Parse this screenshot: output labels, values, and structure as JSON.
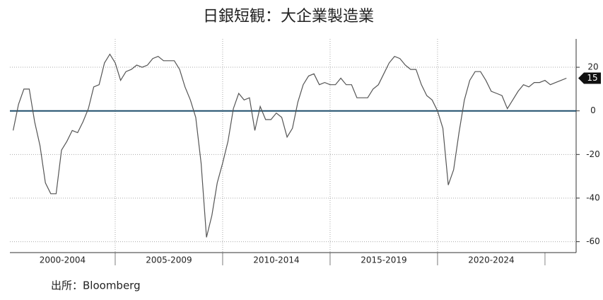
{
  "chart_data": {
    "type": "line",
    "title": "日銀短観：大企業製造業",
    "source": "出所：Bloomberg",
    "x": [
      2000.25,
      2000.5,
      2000.75,
      2001,
      2001.25,
      2001.5,
      2001.75,
      2002,
      2002.25,
      2002.5,
      2002.75,
      2003,
      2003.25,
      2003.5,
      2003.75,
      2004,
      2004.25,
      2004.5,
      2004.75,
      2005,
      2005.25,
      2005.5,
      2005.75,
      2006,
      2006.25,
      2006.5,
      2006.75,
      2007,
      2007.25,
      2007.5,
      2007.75,
      2008,
      2008.25,
      2008.5,
      2008.75,
      2009,
      2009.25,
      2009.5,
      2009.75,
      2010,
      2010.25,
      2010.5,
      2010.75,
      2011,
      2011.25,
      2011.5,
      2011.75,
      2012,
      2012.25,
      2012.5,
      2012.75,
      2013,
      2013.25,
      2013.5,
      2013.75,
      2014,
      2014.25,
      2014.5,
      2014.75,
      2015,
      2015.25,
      2015.5,
      2015.75,
      2016,
      2016.25,
      2016.5,
      2016.75,
      2017,
      2017.25,
      2017.5,
      2017.75,
      2018,
      2018.25,
      2018.5,
      2018.75,
      2019,
      2019.25,
      2019.5,
      2019.75,
      2020,
      2020.25,
      2020.5,
      2020.75,
      2021,
      2021.25,
      2021.5,
      2021.75,
      2022,
      2022.25,
      2022.5,
      2022.75,
      2023,
      2023.25,
      2023.5,
      2023.75,
      2024,
      2024.25,
      2024.5,
      2024.75,
      2025,
      2025.25,
      2025.5,
      2025.75,
      2026
    ],
    "values": [
      -9,
      3,
      10,
      10,
      -5,
      -16,
      -33,
      -38,
      -38,
      -18,
      -14,
      -9,
      -10,
      -5,
      1,
      11,
      12,
      22,
      26,
      22,
      14,
      18,
      19,
      21,
      20,
      21,
      24,
      25,
      23,
      23,
      23,
      19,
      11,
      5,
      -3,
      -24,
      -58,
      -48,
      -33,
      -24,
      -14,
      1,
      8,
      5,
      6,
      -9,
      2,
      -4,
      -4,
      -1,
      -3,
      -12,
      -8,
      4,
      12,
      16,
      17,
      12,
      13,
      12,
      12,
      15,
      12,
      12,
      6,
      6,
      6,
      10,
      12,
      17,
      22,
      25,
      24,
      21,
      19,
      19,
      12,
      7,
      5,
      0,
      -8,
      -34,
      -27,
      -10,
      5,
      14,
      18,
      18,
      14,
      9,
      8,
      7,
      1,
      5,
      9,
      12,
      11,
      13,
      13,
      14,
      12,
      13,
      14,
      15
    ],
    "color": "#555555",
    "zero_line_color": "#1f4e6b",
    "xlim": [
      2000.1,
      2026.45
    ],
    "xgroups": [
      {
        "label": "2000-2004",
        "start": 2000,
        "end": 2005
      },
      {
        "label": "2005-2009",
        "start": 2005,
        "end": 2010
      },
      {
        "label": "2010-2014",
        "start": 2010,
        "end": 2015
      },
      {
        "label": "2015-2019",
        "start": 2015,
        "end": 2020
      },
      {
        "label": "2020-2024",
        "start": 2020,
        "end": 2025
      }
    ],
    "ylim": [
      -65,
      33
    ],
    "yticks": [
      -60,
      -40,
      -20,
      0,
      20
    ],
    "grid": true
  }
}
